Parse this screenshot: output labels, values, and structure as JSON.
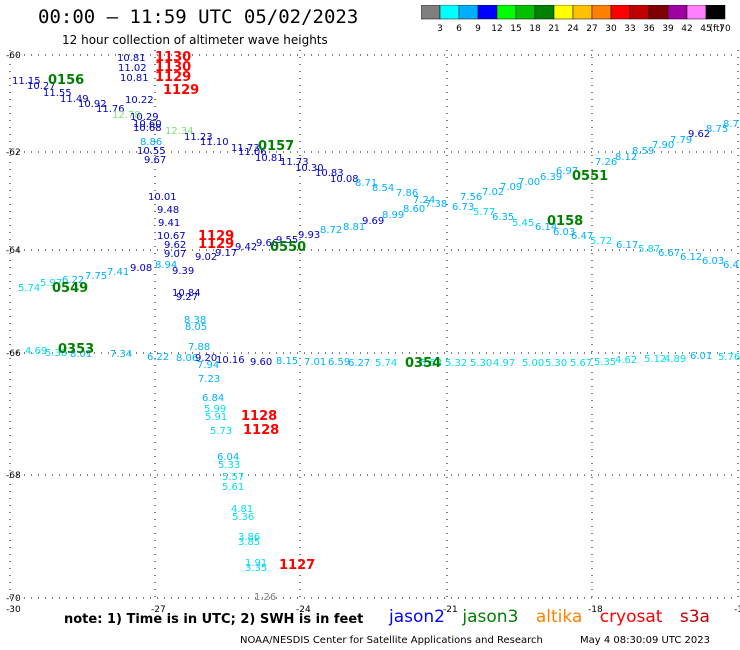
{
  "title": "00:00 – 11:59 UTC 05/02/2023",
  "subtitle": "12 hour collection of altimeter wave heights",
  "legend": {
    "labels": [
      "3",
      "6",
      "9",
      "12",
      "15",
      "18",
      "21",
      "24",
      "27",
      "30",
      "33",
      "36",
      "39",
      "42",
      "45",
      "70"
    ],
    "unit": "(ft)",
    "colors": [
      "#7f7f7f",
      "#00ffff",
      "#00b0ff",
      "#0000ff",
      "#00ff00",
      "#00c000",
      "#008000",
      "#ffff00",
      "#ffc000",
      "#ff8000",
      "#ff0000",
      "#c00000",
      "#800000",
      "#a000a0",
      "#ff80ff",
      "#000000"
    ]
  },
  "axes": {
    "lat_ticks": [
      {
        "label": "-60"
      },
      {
        "label": "-62"
      },
      {
        "label": "-64"
      },
      {
        "label": "-66"
      },
      {
        "label": "-68"
      },
      {
        "label": "-70"
      }
    ],
    "lon_ticks": [
      {
        "label": "-30"
      },
      {
        "label": "-27"
      },
      {
        "label": "-24"
      },
      {
        "label": "-21"
      },
      {
        "label": "-18"
      },
      {
        "label": "-15"
      }
    ]
  },
  "time_labels": [
    {
      "text": "1130",
      "color": "#ff0000"
    },
    {
      "text": "1130",
      "color": "#ff0000"
    },
    {
      "text": "1129",
      "color": "#ff0000"
    },
    {
      "text": "1129",
      "color": "#ff0000"
    },
    {
      "text": "0156",
      "color": "#008000"
    },
    {
      "text": "0157",
      "color": "#008000"
    },
    {
      "text": "0551",
      "color": "#008000"
    },
    {
      "text": "0158",
      "color": "#008000"
    },
    {
      "text": "1129",
      "color": "#ff0000"
    },
    {
      "text": "1129",
      "color": "#ff0000"
    },
    {
      "text": "0550",
      "color": "#008000"
    },
    {
      "text": "0549",
      "color": "#008000"
    },
    {
      "text": "0353",
      "color": "#008000"
    },
    {
      "text": "0354",
      "color": "#008000"
    },
    {
      "text": "1128",
      "color": "#ff0000"
    },
    {
      "text": "1128",
      "color": "#ff0000"
    },
    {
      "text": "1127",
      "color": "#ff0000"
    }
  ],
  "swh_labels": [
    {
      "text": "10.81",
      "color": "#0000c0"
    },
    {
      "text": "11.02",
      "color": "#0000c0"
    },
    {
      "text": "10.81",
      "color": "#0000c0"
    },
    {
      "text": "11.15",
      "color": "#0000c0"
    },
    {
      "text": "10.27",
      "color": "#0000c0"
    },
    {
      "text": "11.55",
      "color": "#0000c0"
    },
    {
      "text": "11.49",
      "color": "#0000c0"
    },
    {
      "text": "10.92",
      "color": "#0000c0"
    },
    {
      "text": "11.76",
      "color": "#0000c0"
    },
    {
      "text": "10.22",
      "color": "#0000c0"
    },
    {
      "text": "12.78",
      "color": "#80e080"
    },
    {
      "text": "10.29",
      "color": "#0000c0"
    },
    {
      "text": "10.60",
      "color": "#0000c0"
    },
    {
      "text": "10.68",
      "color": "#0000c0"
    },
    {
      "text": "12.34",
      "color": "#80e080"
    },
    {
      "text": "11.23",
      "color": "#0000c0"
    },
    {
      "text": "11.10",
      "color": "#0000c0"
    },
    {
      "text": "11.73",
      "color": "#0000c0"
    },
    {
      "text": "8.86",
      "color": "#00b0ff"
    },
    {
      "text": "10.55",
      "color": "#0000c0"
    },
    {
      "text": "11.06",
      "color": "#0000c0"
    },
    {
      "text": "10.81",
      "color": "#0000c0"
    },
    {
      "text": "11.73",
      "color": "#0000c0"
    },
    {
      "text": "9.67",
      "color": "#0000c0"
    },
    {
      "text": "10.30",
      "color": "#0000c0"
    },
    {
      "text": "10.83",
      "color": "#0000c0"
    },
    {
      "text": "10.08",
      "color": "#0000c0"
    },
    {
      "text": "8.71",
      "color": "#00b0ff"
    },
    {
      "text": "8.54",
      "color": "#00b0ff"
    },
    {
      "text": "7.86",
      "color": "#00b0ff"
    },
    {
      "text": "7.24",
      "color": "#00b0ff"
    },
    {
      "text": "7.56",
      "color": "#00b0ff"
    },
    {
      "text": "7.02",
      "color": "#00b0ff"
    },
    {
      "text": "7.09",
      "color": "#00b0ff"
    },
    {
      "text": "7.00",
      "color": "#00b0ff"
    },
    {
      "text": "6.39",
      "color": "#00b0ff"
    },
    {
      "text": "6.97",
      "color": "#00b0ff"
    },
    {
      "text": "7.26",
      "color": "#00b0ff"
    },
    {
      "text": "8.12",
      "color": "#00b0ff"
    },
    {
      "text": "8.59",
      "color": "#00b0ff"
    },
    {
      "text": "7.90",
      "color": "#00b0ff"
    },
    {
      "text": "7.79",
      "color": "#00b0ff"
    },
    {
      "text": "9.62",
      "color": "#0000c0"
    },
    {
      "text": "8.75",
      "color": "#00b0ff"
    },
    {
      "text": "8.7",
      "color": "#00b0ff"
    },
    {
      "text": "10.01",
      "color": "#0000c0"
    },
    {
      "text": "9.48",
      "color": "#0000c0"
    },
    {
      "text": "9.41",
      "color": "#0000c0"
    },
    {
      "text": "10.67",
      "color": "#0000c0"
    },
    {
      "text": "9.62",
      "color": "#0000c0"
    },
    {
      "text": "9.07",
      "color": "#0000c0"
    },
    {
      "text": "9.02",
      "color": "#0000c0"
    },
    {
      "text": "9.17",
      "color": "#0000c0"
    },
    {
      "text": "9.42",
      "color": "#0000c0"
    },
    {
      "text": "9.66",
      "color": "#0000c0"
    },
    {
      "text": "9.55",
      "color": "#0000c0"
    },
    {
      "text": "9.93",
      "color": "#0000c0"
    },
    {
      "text": "8.72",
      "color": "#00b0ff"
    },
    {
      "text": "8.81",
      "color": "#00b0ff"
    },
    {
      "text": "9.69",
      "color": "#0000c0"
    },
    {
      "text": "8.99",
      "color": "#00b0ff"
    },
    {
      "text": "8.60",
      "color": "#00b0ff"
    },
    {
      "text": "7.38",
      "color": "#00b0ff"
    },
    {
      "text": "6.73",
      "color": "#00b0ff"
    },
    {
      "text": "5.77",
      "color": "#00ddee"
    },
    {
      "text": "6.35",
      "color": "#00b0ff"
    },
    {
      "text": "5.45",
      "color": "#00ddee"
    },
    {
      "text": "6.14",
      "color": "#00b0ff"
    },
    {
      "text": "6.03",
      "color": "#00b0ff"
    },
    {
      "text": "6.47",
      "color": "#00b0ff"
    },
    {
      "text": "5.72",
      "color": "#00ddee"
    },
    {
      "text": "6.17",
      "color": "#00b0ff"
    },
    {
      "text": "5.87",
      "color": "#00ddee"
    },
    {
      "text": "6.67",
      "color": "#00b0ff"
    },
    {
      "text": "6.12",
      "color": "#00b0ff"
    },
    {
      "text": "6.03",
      "color": "#00b0ff"
    },
    {
      "text": "6.4",
      "color": "#00b0ff"
    },
    {
      "text": "9.08",
      "color": "#0000c0"
    },
    {
      "text": "8.94",
      "color": "#00b0ff"
    },
    {
      "text": "9.39",
      "color": "#0000c0"
    },
    {
      "text": "5.74",
      "color": "#00ddee"
    },
    {
      "text": "5.97",
      "color": "#00ddee"
    },
    {
      "text": "6.22",
      "color": "#00b0ff"
    },
    {
      "text": "7.75",
      "color": "#00b0ff"
    },
    {
      "text": "7.41",
      "color": "#00b0ff"
    },
    {
      "text": "10.84",
      "color": "#0000c0"
    },
    {
      "text": "9.27",
      "color": "#0000c0"
    },
    {
      "text": "8.38",
      "color": "#00b0ff"
    },
    {
      "text": "8.05",
      "color": "#00b0ff"
    },
    {
      "text": "4.69",
      "color": "#00ddee"
    },
    {
      "text": "5.38",
      "color": "#00ddee"
    },
    {
      "text": "8.01",
      "color": "#00b0ff"
    },
    {
      "text": "7.34",
      "color": "#00b0ff"
    },
    {
      "text": "6.22",
      "color": "#00b0ff"
    },
    {
      "text": "8.06",
      "color": "#00b0ff"
    },
    {
      "text": "7.88",
      "color": "#00b0ff"
    },
    {
      "text": "9.20",
      "color": "#0000c0"
    },
    {
      "text": "10.16",
      "color": "#0000c0"
    },
    {
      "text": "9.60",
      "color": "#0000c0"
    },
    {
      "text": "8.15",
      "color": "#00b0ff"
    },
    {
      "text": "7.01",
      "color": "#00b0ff"
    },
    {
      "text": "6.59",
      "color": "#00b0ff"
    },
    {
      "text": "6.27",
      "color": "#00b0ff"
    },
    {
      "text": "5.74",
      "color": "#00ddee"
    },
    {
      "text": "5.53",
      "color": "#00ddee"
    },
    {
      "text": "5.32",
      "color": "#00ddee"
    },
    {
      "text": "5.30",
      "color": "#00ddee"
    },
    {
      "text": "4.97",
      "color": "#00ddee"
    },
    {
      "text": "5.00",
      "color": "#00ddee"
    },
    {
      "text": "5.30",
      "color": "#00ddee"
    },
    {
      "text": "5.67",
      "color": "#00ddee"
    },
    {
      "text": "5.35",
      "color": "#00ddee"
    },
    {
      "text": "4.62",
      "color": "#00ddee"
    },
    {
      "text": "5.12",
      "color": "#00ddee"
    },
    {
      "text": "4.89",
      "color": "#00ddee"
    },
    {
      "text": "6.01",
      "color": "#00b0ff"
    },
    {
      "text": "5.76",
      "color": "#00ddee"
    },
    {
      "text": "7.94",
      "color": "#00b0ff"
    },
    {
      "text": "7.23",
      "color": "#00b0ff"
    },
    {
      "text": "6.84",
      "color": "#00b0ff"
    },
    {
      "text": "5.99",
      "color": "#00ddee"
    },
    {
      "text": "5.91",
      "color": "#00ddee"
    },
    {
      "text": "5.73",
      "color": "#00ddee"
    },
    {
      "text": "6.04",
      "color": "#00b0ff"
    },
    {
      "text": "5.33",
      "color": "#00ddee"
    },
    {
      "text": "5.57",
      "color": "#00ddee"
    },
    {
      "text": "5.61",
      "color": "#00ddee"
    },
    {
      "text": "4.81",
      "color": "#00ddee"
    },
    {
      "text": "5.36",
      "color": "#00ddee"
    },
    {
      "text": "3.86",
      "color": "#00ddee"
    },
    {
      "text": "3.85",
      "color": "#00ddee"
    },
    {
      "text": "1.91",
      "color": "#00ddee"
    },
    {
      "text": "3.35",
      "color": "#00ddee"
    },
    {
      "text": "1.26",
      "color": "#7f7f7f"
    }
  ],
  "note": "note: 1) Time is in UTC; 2) SWH is in feet",
  "satellites": [
    {
      "name": "jason2",
      "color": "#0000ff"
    },
    {
      "name": "jason3",
      "color": "#008000"
    },
    {
      "name": "altika",
      "color": "#ff8000"
    },
    {
      "name": "cryosat",
      "color": "#ff0000"
    },
    {
      "name": "s3a",
      "color": "#c00000"
    }
  ],
  "footer_left": "NOAA/NESDIS Center for Satellite Applications and Research",
  "footer_right": "May  4 08:30:09 UTC 2023"
}
